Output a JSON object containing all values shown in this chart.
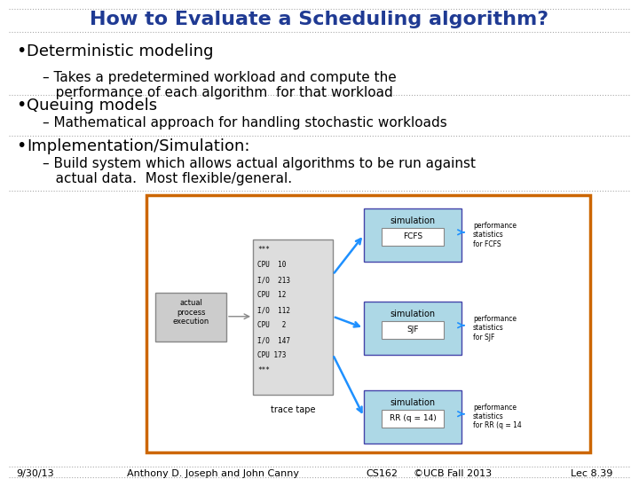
{
  "title": "How to Evaluate a Scheduling algorithm?",
  "title_color": "#1F3A93",
  "background_color": "#FFFFFF",
  "bullet1": "Deterministic modeling",
  "sub1": "– Takes a predetermined workload and compute the\n   performance of each algorithm  for that workload",
  "bullet2": "Queuing models",
  "sub2": "– Mathematical approach for handling stochastic workloads",
  "bullet3": "Implementation/Simulation:",
  "sub3": "– Build system which allows actual algorithms to be run against\n   actual data.  Most flexible/general.",
  "footer_left": "9/30/13",
  "footer_mid1": "Anthony D. Joseph and John Canny",
  "footer_mid2": "CS162",
  "footer_mid3": "©UCB Fall 2013",
  "footer_right": "Lec 8.39",
  "dotted_line_color": "#AAAAAA",
  "diagram_border_color": "#CC6600",
  "diagram_bg": "#F0F8FF",
  "sim_box_color": "#ADD8E6",
  "trace_box_color": "#CCCCCC",
  "actual_box_color": "#CCCCCC",
  "arrow_color": "#1E90FF",
  "text_color": "#000000",
  "font_family": "DejaVu Sans"
}
